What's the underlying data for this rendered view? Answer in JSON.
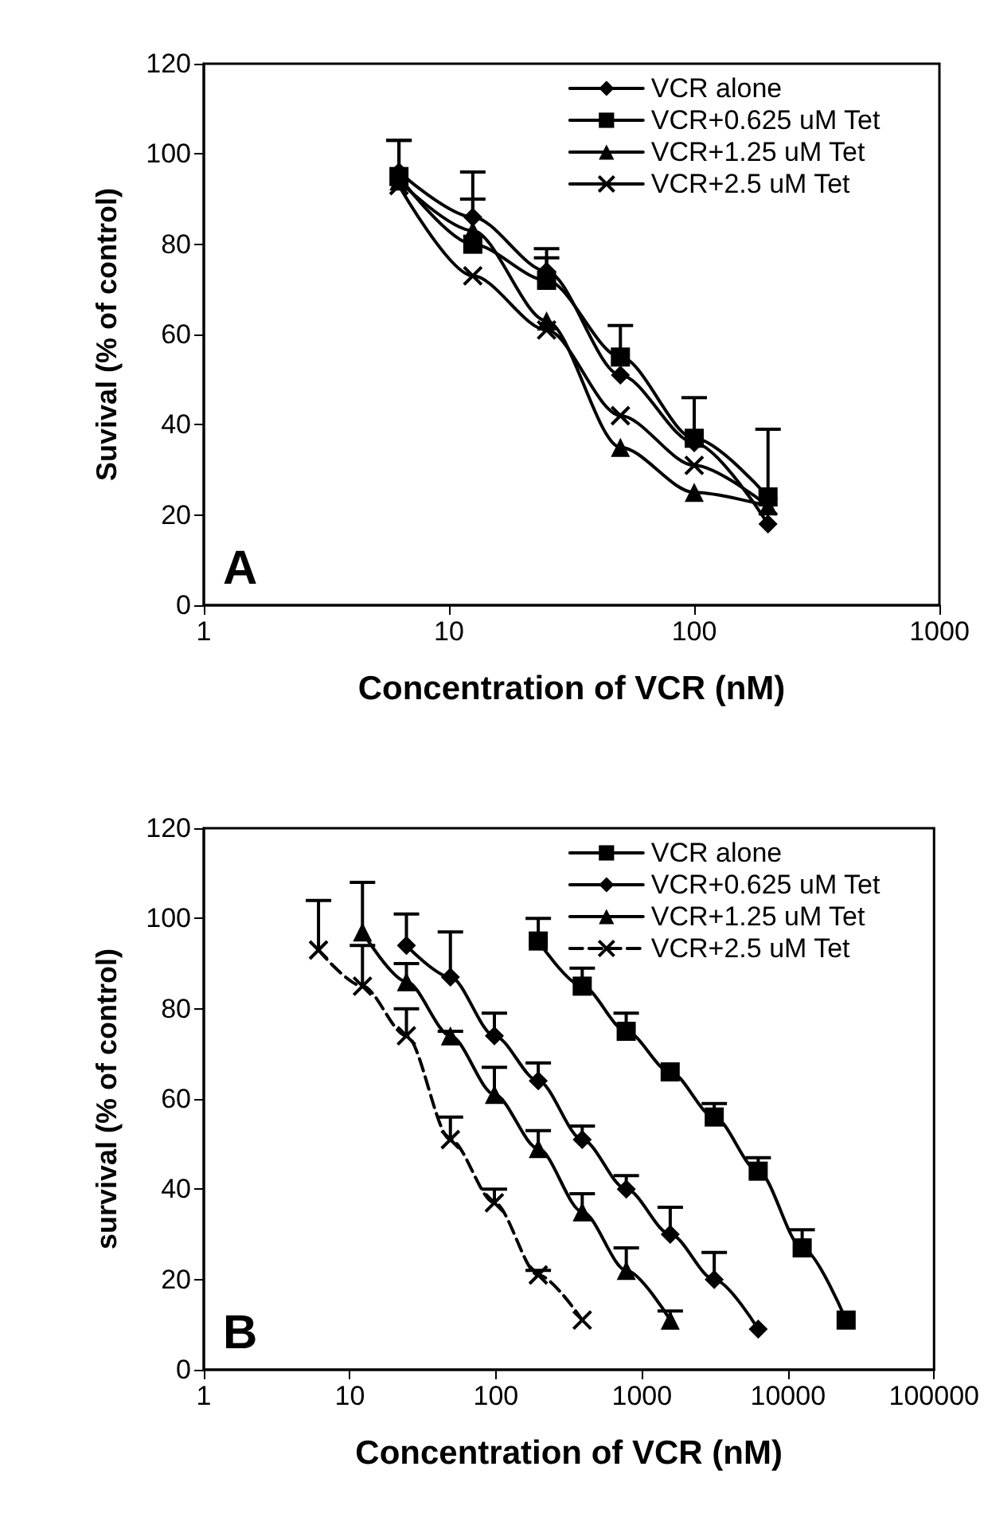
{
  "chart_data": [
    {
      "type": "line",
      "xlabel": "Concentration of VCR (nM)",
      "ylabel": "Suvival (% of control)",
      "log": "x",
      "xlim": [
        1,
        1000
      ],
      "xticks": [
        1,
        10,
        100,
        1000
      ],
      "ylim": [
        0,
        120
      ],
      "yticks": [
        0,
        20,
        40,
        60,
        80,
        100,
        120
      ],
      "legend": "top right",
      "annotations": [
        "A"
      ],
      "series": [
        {
          "name": "VCR alone",
          "color": "#000000",
          "marker": "diamond",
          "line_style": "solid",
          "x": [
            6.25,
            12.5,
            25,
            50,
            100,
            200
          ],
          "values": [
            96,
            86,
            74,
            51,
            36,
            18
          ],
          "errors": [
            [
              96,
              103
            ],
            [
              86,
              96
            ],
            [
              74,
              79
            ],
            null,
            null,
            null
          ]
        },
        {
          "name": "VCR+0.625 uM Tet",
          "color": "#000000",
          "marker": "square",
          "line_style": "solid",
          "x": [
            6.25,
            12.5,
            25,
            50,
            100,
            200
          ],
          "values": [
            95,
            80,
            72,
            55,
            37,
            24
          ],
          "errors": [
            [
              95,
              103
            ],
            [
              80,
              90
            ],
            [
              72,
              77
            ],
            [
              55,
              62
            ],
            [
              37,
              46
            ],
            [
              24,
              39
            ]
          ]
        },
        {
          "name": "VCR+1.25 uM Tet",
          "color": "#000000",
          "marker": "triangle",
          "line_style": "solid",
          "x": [
            6.25,
            12.5,
            25,
            50,
            100,
            200
          ],
          "values": [
            94,
            83,
            63,
            35,
            25,
            22
          ]
        },
        {
          "name": "VCR+2.5 uM Tet",
          "color": "#000000",
          "marker": "cross",
          "line_style": "solid",
          "x": [
            6.25,
            12.5,
            25,
            50,
            100,
            200
          ],
          "values": [
            93,
            73,
            61,
            42,
            31,
            22
          ]
        }
      ]
    },
    {
      "type": "line",
      "xlabel": "Concentration of VCR (nM)",
      "ylabel": "survival (% of control)",
      "log": "x",
      "xlim": [
        1,
        100000
      ],
      "xticks": [
        1,
        10,
        100,
        1000,
        10000,
        100000
      ],
      "ylim": [
        0,
        120
      ],
      "yticks": [
        0,
        20,
        40,
        60,
        80,
        100,
        120
      ],
      "legend": "top right",
      "annotations": [
        "B"
      ],
      "series": [
        {
          "name": "VCR alone",
          "color": "#000000",
          "marker": "square",
          "line_style": "solid",
          "x": [
            195,
            390,
            780,
            1560,
            3125,
            6250,
            12500,
            25000
          ],
          "values": [
            95,
            85,
            75,
            66,
            56,
            44,
            27,
            11
          ],
          "errors": [
            [
              95,
              100
            ],
            [
              85,
              89
            ],
            [
              75,
              79
            ],
            null,
            [
              56,
              59
            ],
            [
              44,
              47
            ],
            [
              27,
              31
            ],
            null
          ]
        },
        {
          "name": "VCR+0.625 uM Tet",
          "color": "#000000",
          "marker": "diamond",
          "line_style": "solid",
          "x": [
            24.4,
            48.8,
            97.6,
            195,
            390,
            781,
            1562,
            3125,
            6250
          ],
          "values": [
            94,
            87,
            74,
            64,
            51,
            40,
            30,
            20,
            9
          ],
          "errors": [
            [
              94,
              101
            ],
            [
              87,
              97
            ],
            [
              74,
              79
            ],
            [
              64,
              68
            ],
            [
              51,
              54
            ],
            [
              40,
              43
            ],
            [
              30,
              36
            ],
            [
              20,
              26
            ],
            null
          ]
        },
        {
          "name": "VCR+1.25 uM Tet",
          "color": "#000000",
          "marker": "triangle",
          "line_style": "solid",
          "x": [
            12.2,
            24.4,
            48.8,
            97.6,
            195,
            390,
            781,
            1562
          ],
          "values": [
            97,
            86,
            74,
            61,
            49,
            35,
            22,
            11
          ],
          "errors": [
            [
              97,
              108
            ],
            [
              86,
              90
            ],
            [
              74,
              75
            ],
            [
              61,
              67
            ],
            [
              49,
              53
            ],
            [
              35,
              39
            ],
            [
              22,
              27
            ],
            [
              11,
              13
            ]
          ]
        },
        {
          "name": "VCR+2.5 uM Tet",
          "color": "#000000",
          "marker": "cross",
          "line_style": "dashed",
          "x": [
            6.1,
            12.2,
            24.4,
            48.8,
            97.6,
            195,
            390
          ],
          "values": [
            93,
            85,
            74,
            51,
            37,
            21,
            11
          ],
          "errors": [
            [
              93,
              104
            ],
            [
              85,
              94
            ],
            [
              74,
              80
            ],
            [
              51,
              56
            ],
            [
              37,
              40
            ],
            [
              21,
              22
            ],
            null
          ]
        }
      ]
    }
  ]
}
